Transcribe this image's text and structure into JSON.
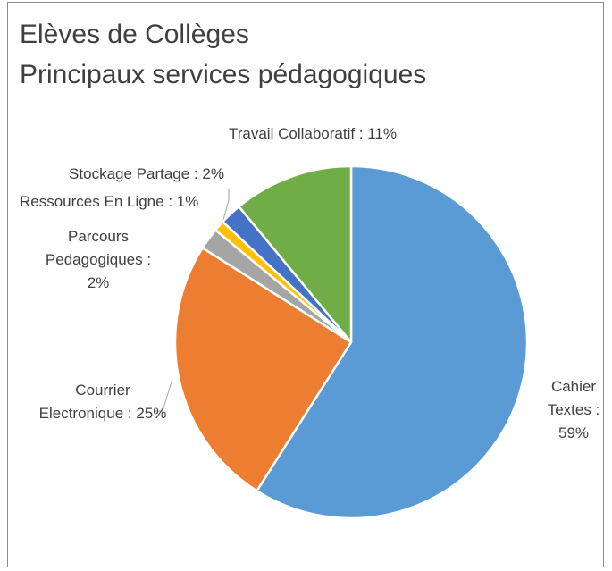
{
  "chart_data": {
    "type": "pie",
    "title": "Elèves de Collèges",
    "subtitle": "Principaux services pédagogiques",
    "values": [
      59,
      25,
      2,
      1,
      2,
      11
    ],
    "value_labels": [
      "Cahier Textes : 59%",
      "Courrier Electronique : 25%",
      "Parcours Pedagogiques : 2%",
      "Ressources En Ligne : 1%",
      "Stockage Partage : 2%",
      "Travail Collaboratif : 11%"
    ],
    "colors": [
      "#5b9bd5",
      "#ed7d31",
      "#a5a5a5",
      "#ffc000",
      "#4472c4",
      "#70ad47"
    ]
  }
}
